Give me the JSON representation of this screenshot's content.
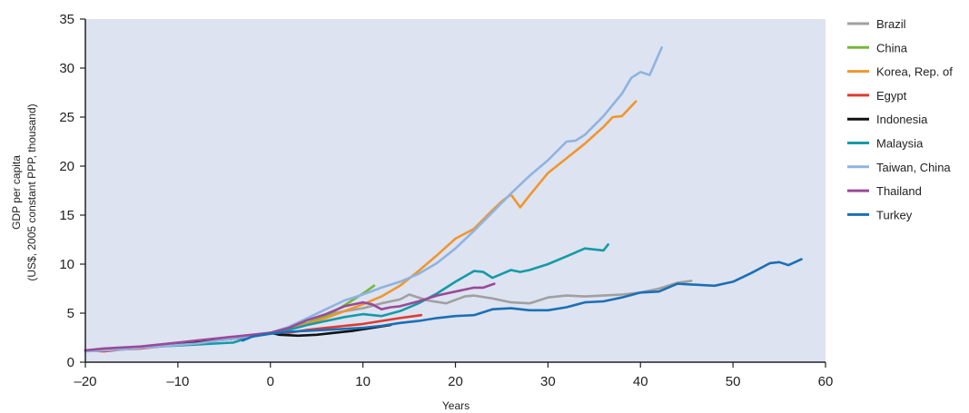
{
  "chart_data": {
    "type": "line",
    "title": "",
    "xlabel": "Years",
    "ylabel": "GDP per capita",
    "ylabel2": "(US$, 2005 constant PPP, thousand)",
    "xlim": [
      -20,
      60
    ],
    "ylim": [
      0,
      35
    ],
    "xticks": [
      -20,
      -10,
      0,
      10,
      20,
      30,
      40,
      50,
      60
    ],
    "xtick_labels": [
      "–20",
      "–10",
      "0",
      "10",
      "20",
      "30",
      "40",
      "50",
      "60"
    ],
    "yticks": [
      0,
      5,
      10,
      15,
      20,
      25,
      30,
      35
    ],
    "grid": false,
    "legend_position": "right",
    "plot_background": "#dde3f1",
    "series": [
      {
        "name": "Brazil",
        "color": "#a0a0a0",
        "x": [
          6,
          8,
          10,
          12,
          14,
          15,
          17,
          19,
          21,
          22,
          24,
          26,
          28,
          30,
          32,
          34,
          36,
          38,
          40,
          42,
          44,
          45.5
        ],
        "y": [
          4.8,
          5.2,
          5.5,
          6.0,
          6.4,
          6.9,
          6.3,
          6.0,
          6.7,
          6.8,
          6.5,
          6.1,
          6.0,
          6.6,
          6.8,
          6.7,
          6.8,
          6.9,
          7.1,
          7.5,
          8.1,
          8.3
        ]
      },
      {
        "name": "China",
        "color": "#76b73c",
        "x": [
          0,
          2,
          4,
          6,
          8,
          10,
          11.2
        ],
        "y": [
          3.0,
          3.4,
          4.0,
          4.7,
          5.8,
          7.0,
          7.8
        ]
      },
      {
        "name": "Korea, Rep. of",
        "color": "#f0962d",
        "x": [
          0,
          2,
          4,
          6,
          8,
          10,
          12,
          14,
          16,
          18,
          20,
          22,
          24,
          25,
          26,
          27,
          28,
          30,
          32,
          34,
          36,
          37,
          38,
          39.5
        ],
        "y": [
          3.0,
          3.4,
          3.9,
          4.5,
          5.2,
          5.9,
          6.7,
          7.8,
          9.3,
          10.9,
          12.6,
          13.6,
          15.5,
          16.4,
          17.1,
          15.8,
          17.0,
          19.3,
          20.8,
          22.3,
          24.0,
          25.0,
          25.1,
          26.6
        ]
      },
      {
        "name": "Egypt",
        "color": "#e03a2e",
        "x": [
          -20,
          -18,
          -16,
          -14,
          -12,
          -10,
          -8,
          -6,
          -4,
          -2,
          0,
          2,
          4,
          6,
          8,
          10,
          12,
          14,
          16.3
        ],
        "y": [
          1.2,
          1.1,
          1.3,
          1.4,
          1.6,
          1.8,
          2.0,
          2.2,
          2.4,
          2.6,
          3.0,
          3.0,
          3.3,
          3.5,
          3.7,
          3.9,
          4.2,
          4.5,
          4.8
        ]
      },
      {
        "name": "Indonesia",
        "color": "#111111",
        "x": [
          -20,
          -18,
          -16,
          -14,
          -12,
          -10,
          -8,
          -6,
          -4,
          -2,
          0,
          1,
          3,
          5,
          7,
          9,
          11,
          13
        ],
        "y": [
          1.2,
          1.3,
          1.4,
          1.5,
          1.6,
          1.8,
          2.0,
          2.2,
          2.4,
          2.7,
          3.0,
          2.8,
          2.7,
          2.8,
          3.0,
          3.2,
          3.5,
          3.8
        ]
      },
      {
        "name": "Malaysia",
        "color": "#159aa6",
        "x": [
          -20,
          -16,
          -12,
          -8,
          -6,
          -4,
          -2,
          0,
          2,
          4,
          6,
          8,
          10,
          12,
          14,
          16,
          18,
          20,
          22,
          23,
          24,
          25,
          26,
          27,
          28,
          30,
          32,
          34,
          35,
          36,
          36.5
        ],
        "y": [
          1.2,
          1.4,
          1.6,
          1.8,
          1.9,
          2.0,
          2.6,
          3.0,
          3.3,
          3.8,
          4.2,
          4.6,
          4.9,
          4.7,
          5.2,
          6.0,
          7.0,
          8.2,
          9.3,
          9.2,
          8.6,
          9.0,
          9.4,
          9.2,
          9.4,
          10.0,
          10.8,
          11.6,
          11.5,
          11.4,
          12.0
        ]
      },
      {
        "name": "Taiwan, China",
        "color": "#8fb3e0",
        "x": [
          -20,
          -16,
          -12,
          -8,
          -4,
          0,
          2,
          4,
          6,
          8,
          10,
          12,
          14,
          16,
          18,
          20,
          22,
          24,
          26,
          28,
          30,
          32,
          33,
          34,
          36,
          38,
          39,
          40,
          41,
          42.3
        ],
        "y": [
          1.1,
          1.3,
          1.6,
          1.9,
          2.4,
          3.0,
          3.6,
          4.5,
          5.4,
          6.3,
          6.9,
          7.6,
          8.2,
          9.0,
          10.1,
          11.6,
          13.4,
          15.3,
          17.2,
          19.0,
          20.6,
          22.5,
          22.6,
          23.2,
          25.1,
          27.4,
          29.0,
          29.6,
          29.3,
          32.1
        ]
      },
      {
        "name": "Thailand",
        "color": "#9a4a98",
        "x": [
          -20,
          -18,
          -16,
          -14,
          -12,
          -10,
          -8,
          -6,
          -4,
          -2,
          0,
          2,
          4,
          6,
          8,
          10,
          11,
          12,
          13,
          14,
          16,
          18,
          20,
          22,
          23,
          24.2
        ],
        "y": [
          1.2,
          1.4,
          1.5,
          1.6,
          1.8,
          2.0,
          2.2,
          2.4,
          2.6,
          2.8,
          3.0,
          3.5,
          4.3,
          4.9,
          5.7,
          6.1,
          5.9,
          5.4,
          5.6,
          5.7,
          6.2,
          6.8,
          7.2,
          7.6,
          7.6,
          8.0
        ]
      },
      {
        "name": "Turkey",
        "color": "#1b6fb5",
        "x": [
          -3,
          -2,
          0,
          2,
          4,
          6,
          8,
          10,
          12,
          14,
          16,
          18,
          20,
          22,
          24,
          26,
          28,
          30,
          32,
          34,
          36,
          38,
          40,
          42,
          44,
          46,
          48,
          50,
          52,
          54,
          55,
          56,
          57.4
        ],
        "y": [
          2.2,
          2.6,
          2.9,
          3.1,
          3.2,
          3.3,
          3.4,
          3.5,
          3.7,
          4.0,
          4.2,
          4.5,
          4.7,
          4.8,
          5.4,
          5.5,
          5.3,
          5.3,
          5.6,
          6.1,
          6.2,
          6.6,
          7.1,
          7.2,
          8.0,
          7.9,
          7.8,
          8.2,
          9.1,
          10.1,
          10.2,
          9.9,
          10.5
        ]
      }
    ]
  }
}
